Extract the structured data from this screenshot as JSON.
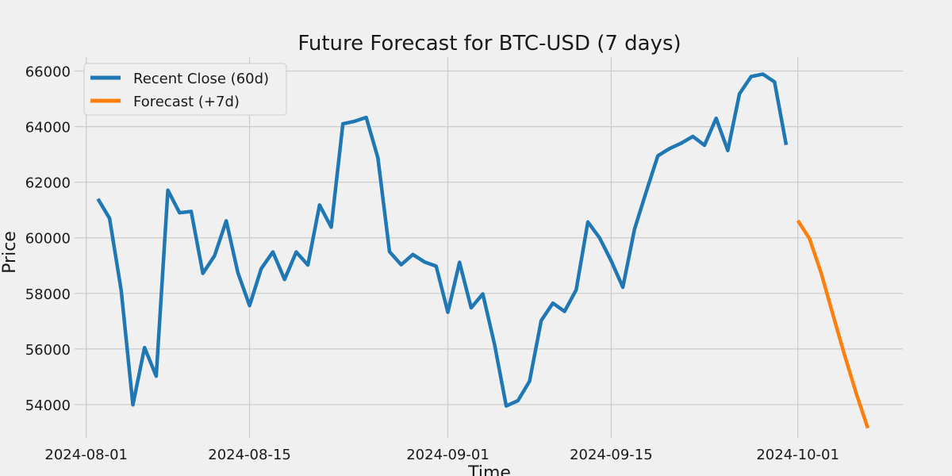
{
  "chart_data": {
    "type": "line",
    "title": "Future Forecast for BTC-USD (7 days)",
    "xlabel": "Time",
    "ylabel": "Price",
    "x_ticks": [
      "2024-08-01",
      "2024-08-15",
      "2024-09-01",
      "2024-09-15",
      "2024-10-01"
    ],
    "y_ticks": [
      54000,
      56000,
      58000,
      60000,
      62000,
      64000,
      66000
    ],
    "ylim": [
      52800,
      66500
    ],
    "xlim": [
      "2024-07-31",
      "2024-10-10"
    ],
    "grid": true,
    "legend_position": "top-left",
    "series": [
      {
        "name": "Recent Close (60d)",
        "color": "#1f77b4",
        "x": [
          "2024-08-02",
          "2024-08-03",
          "2024-08-04",
          "2024-08-05",
          "2024-08-06",
          "2024-08-07",
          "2024-08-08",
          "2024-08-09",
          "2024-08-10",
          "2024-08-11",
          "2024-08-12",
          "2024-08-13",
          "2024-08-14",
          "2024-08-15",
          "2024-08-16",
          "2024-08-17",
          "2024-08-18",
          "2024-08-19",
          "2024-08-20",
          "2024-08-21",
          "2024-08-22",
          "2024-08-23",
          "2024-08-24",
          "2024-08-25",
          "2024-08-26",
          "2024-08-27",
          "2024-08-28",
          "2024-08-29",
          "2024-08-30",
          "2024-08-31",
          "2024-09-01",
          "2024-09-02",
          "2024-09-03",
          "2024-09-04",
          "2024-09-05",
          "2024-09-06",
          "2024-09-07",
          "2024-09-08",
          "2024-09-09",
          "2024-09-10",
          "2024-09-11",
          "2024-09-12",
          "2024-09-13",
          "2024-09-14",
          "2024-09-15",
          "2024-09-16",
          "2024-09-17",
          "2024-09-18",
          "2024-09-19",
          "2024-09-20",
          "2024-09-21",
          "2024-09-22",
          "2024-09-23",
          "2024-09-24",
          "2024-09-25",
          "2024-09-26",
          "2024-09-27",
          "2024-09-28",
          "2024-09-29",
          "2024-09-30"
        ],
        "y": [
          61400,
          60700,
          58100,
          53990,
          56050,
          55020,
          61710,
          60900,
          60950,
          58720,
          59360,
          60610,
          58740,
          57560,
          58890,
          59490,
          58500,
          59490,
          59020,
          61180,
          60380,
          64100,
          64190,
          64330,
          62880,
          59500,
          59030,
          59400,
          59130,
          58980,
          57320,
          59120,
          57480,
          57980,
          56160,
          53950,
          54140,
          54840,
          57020,
          57650,
          57350,
          58130,
          60570,
          60000,
          59170,
          58220,
          60310,
          61650,
          62950,
          63210,
          63400,
          63650,
          63330,
          64300,
          63140,
          65180,
          65800,
          65890,
          65610,
          63340
        ]
      },
      {
        "name": "Forecast (+7d)",
        "color": "#ff7f0e",
        "x": [
          "2024-10-01",
          "2024-10-02",
          "2024-10-03",
          "2024-10-04",
          "2024-10-05",
          "2024-10-06",
          "2024-10-07"
        ],
        "y": [
          60620,
          59970,
          58730,
          57250,
          55790,
          54410,
          53150
        ]
      }
    ]
  }
}
